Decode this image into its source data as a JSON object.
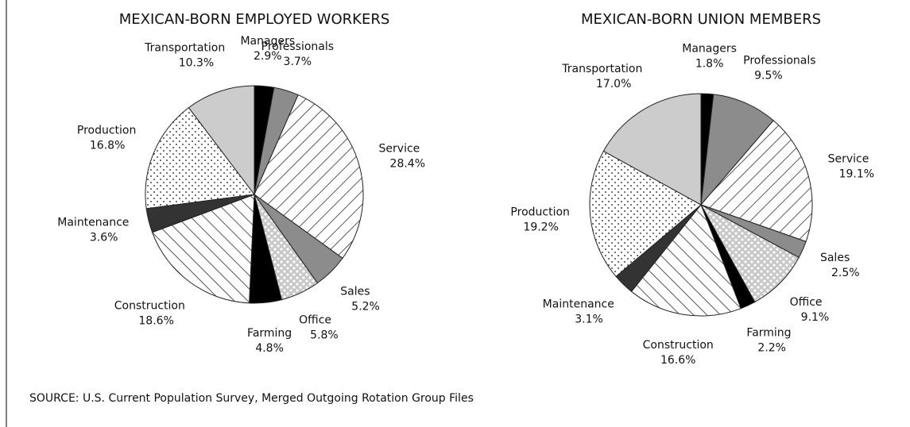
{
  "chart_data": [
    {
      "type": "pie",
      "title": "MEXICAN-BORN EMPLOYED WORKERS",
      "categories": [
        "Managers",
        "Professionals",
        "Service",
        "Sales",
        "Office",
        "Farming",
        "Construction",
        "Maintenance",
        "Production",
        "Transportation"
      ],
      "values": [
        2.9,
        3.7,
        28.4,
        5.2,
        5.8,
        4.8,
        18.6,
        3.6,
        16.8,
        10.3
      ],
      "value_labels": [
        "2.9%",
        "3.7%",
        "28.4%",
        "5.2%",
        "5.8%",
        "4.8%",
        "18.6%",
        "3.6%",
        "16.8%",
        "10.3%"
      ],
      "colors": [
        "#000000",
        "#8c8c8c",
        "hatch-up",
        "#8c8c8c",
        "dots-light",
        "#000000",
        "hatch-down",
        "#333333",
        "dots-dark",
        "#cccccc"
      ]
    },
    {
      "type": "pie",
      "title": "MEXICAN-BORN UNION MEMBERS",
      "categories": [
        "Managers",
        "Professionals",
        "Service",
        "Sales",
        "Office",
        "Farming",
        "Construction",
        "Maintenance",
        "Production",
        "Transportation"
      ],
      "values": [
        1.8,
        9.5,
        19.1,
        2.5,
        9.1,
        2.2,
        16.6,
        3.1,
        19.2,
        17.0
      ],
      "value_labels": [
        "1.8%",
        "9.5%",
        "19.1%",
        "2.5%",
        "9.1%",
        "2.2%",
        "16.6%",
        "3.1%",
        "19.2%",
        "17.0%"
      ],
      "colors": [
        "#000000",
        "#8c8c8c",
        "hatch-up",
        "#8c8c8c",
        "dots-light",
        "#000000",
        "hatch-down",
        "#333333",
        "dots-dark",
        "#cccccc"
      ]
    }
  ],
  "source": "SOURCE:  U.S. Current Population Survey, Merged Outgoing Rotation Group Files"
}
